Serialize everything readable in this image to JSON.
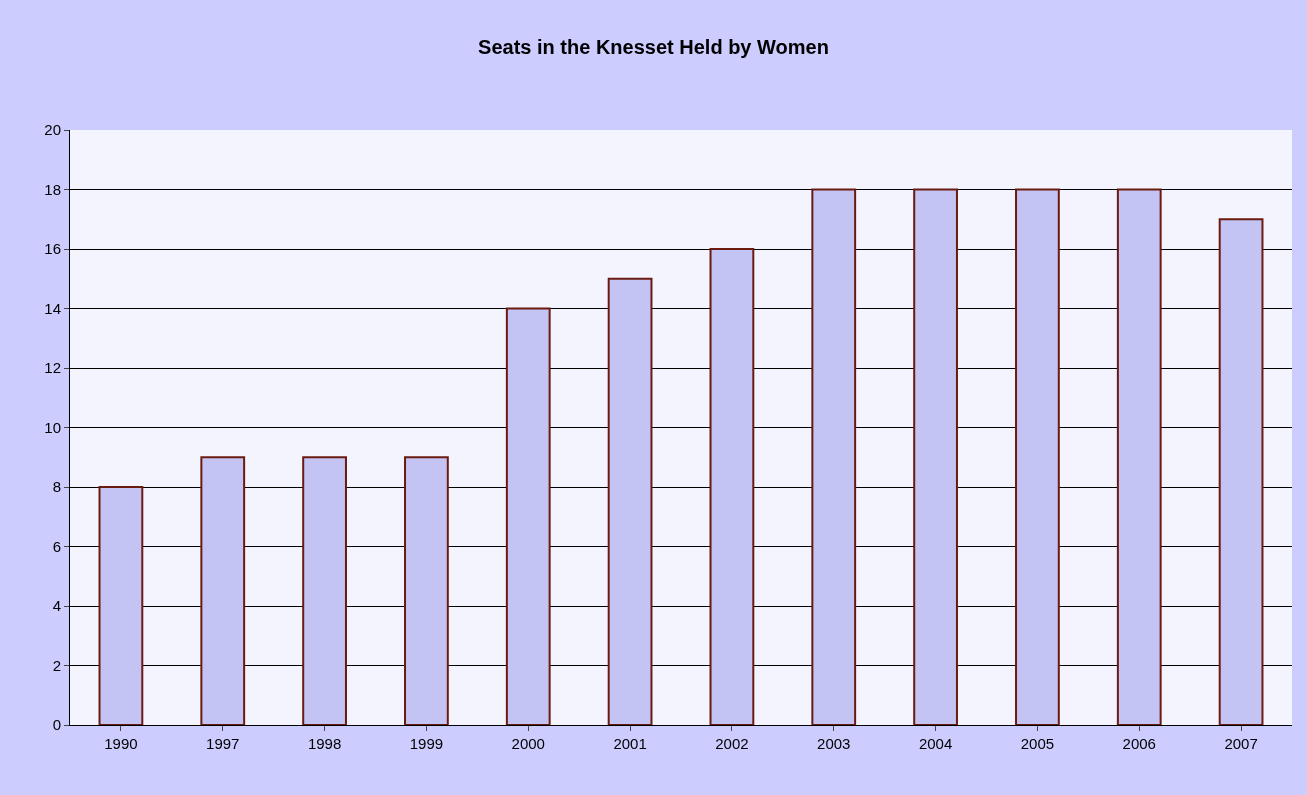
{
  "chart_data": {
    "type": "bar",
    "title": "Seats in the Knesset Held by Women",
    "categories": [
      "1990",
      "1997",
      "1998",
      "1999",
      "2000",
      "2001",
      "2002",
      "2003",
      "2004",
      "2005",
      "2006",
      "2007"
    ],
    "values": [
      8,
      9,
      9,
      9,
      14,
      15,
      16,
      18,
      18,
      18,
      18,
      17
    ],
    "color": "#c4c4f4",
    "ylim": [
      0,
      20
    ],
    "yticks": [
      0,
      2,
      4,
      6,
      8,
      10,
      12,
      14,
      16,
      18,
      20
    ],
    "grid": "y"
  }
}
